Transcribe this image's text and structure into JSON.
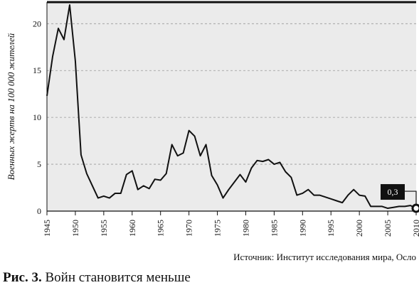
{
  "chart_data": {
    "type": "line",
    "y_label": "Военных жертв на 100 000 жителей",
    "source": "Источник: Институт исследования мира, Осло",
    "caption": {
      "label": "Рис. 3.",
      "text": "Войн становится меньше"
    },
    "x": [
      1945,
      1946,
      1947,
      1948,
      1949,
      1950,
      1951,
      1952,
      1953,
      1954,
      1955,
      1956,
      1957,
      1958,
      1959,
      1960,
      1961,
      1962,
      1963,
      1964,
      1965,
      1966,
      1967,
      1968,
      1969,
      1970,
      1971,
      1972,
      1973,
      1974,
      1975,
      1976,
      1977,
      1978,
      1979,
      1980,
      1981,
      1982,
      1983,
      1984,
      1985,
      1986,
      1987,
      1988,
      1989,
      1990,
      1991,
      1992,
      1993,
      1994,
      1995,
      1996,
      1997,
      1998,
      1999,
      2000,
      2001,
      2002,
      2003,
      2004,
      2005,
      2006,
      2007,
      2008,
      2009,
      2010
    ],
    "values": [
      12.3,
      16.5,
      19.5,
      18.3,
      22,
      16,
      6,
      4,
      2.7,
      1.4,
      1.6,
      1.4,
      1.9,
      1.9,
      3.9,
      4.3,
      2.3,
      2.7,
      2.4,
      3.4,
      3.3,
      4,
      7.1,
      5.9,
      6.2,
      8.6,
      8,
      5.9,
      7.1,
      3.8,
      2.8,
      1.4,
      2.3,
      3.1,
      3.9,
      3.1,
      4.6,
      5.4,
      5.3,
      5.5,
      5,
      5.2,
      4.2,
      3.6,
      1.7,
      1.9,
      2.3,
      1.7,
      1.7,
      1.5,
      1.3,
      1.1,
      0.9,
      1.7,
      2.3,
      1.7,
      1.6,
      0.5,
      0.5,
      0.5,
      0.3,
      0.4,
      0.5,
      0.5,
      0.6,
      0.3
    ],
    "value_labels": [
      null,
      null,
      null,
      null,
      null,
      null,
      null,
      null,
      null,
      null,
      null,
      null,
      null,
      null,
      null,
      null,
      null,
      null,
      null,
      null,
      null,
      null,
      null,
      null,
      null,
      null,
      null,
      null,
      null,
      null,
      null,
      null,
      null,
      null,
      null,
      null,
      null,
      null,
      null,
      null,
      null,
      null,
      null,
      null,
      null,
      null,
      null,
      null,
      null,
      null,
      null,
      null,
      null,
      null,
      null,
      null,
      null,
      null,
      null,
      null,
      null,
      null,
      null,
      null,
      null,
      "0,3"
    ],
    "color": "#111111",
    "xlim": [
      1945,
      2010
    ],
    "xticks": [
      1945,
      1950,
      1955,
      1960,
      1965,
      1970,
      1975,
      1980,
      1985,
      1990,
      1995,
      2000,
      2005,
      2010
    ],
    "ylim": [
      0,
      22.3
    ],
    "yticks": [
      0,
      5,
      10,
      15,
      20
    ],
    "grid": true
  }
}
